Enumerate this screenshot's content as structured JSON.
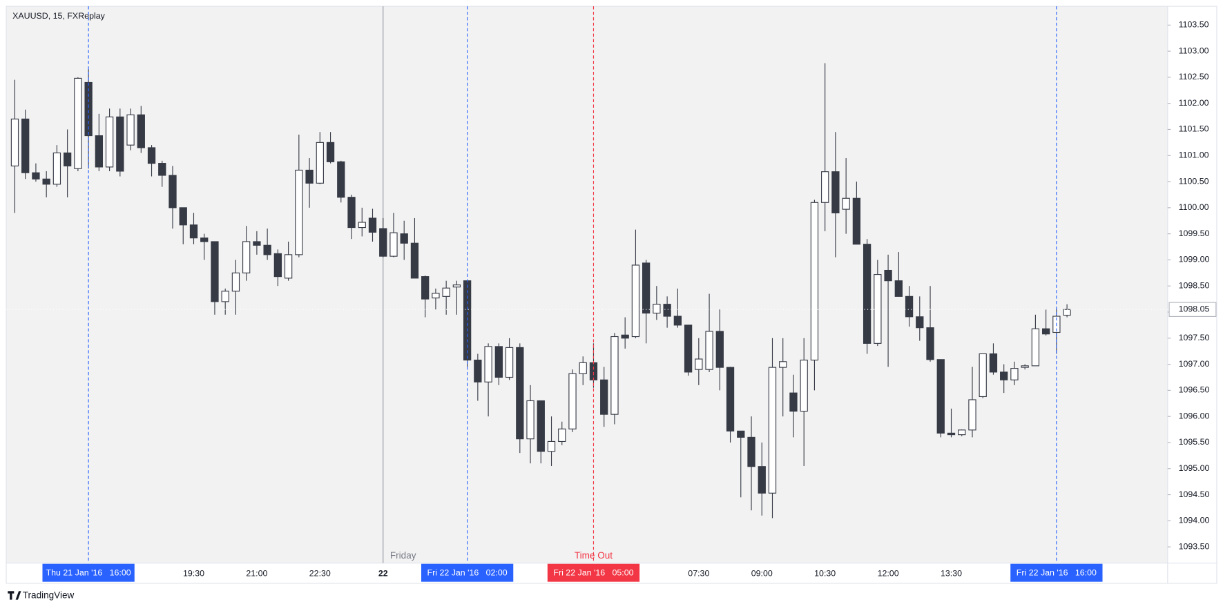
{
  "chart_data": {
    "type": "candlestick",
    "title": "XAUUSD, 15, FXReplay",
    "brand": "TradingView",
    "up_color": "#ffffff",
    "down_color": "#363a45",
    "border_color": "#363a45",
    "categories": [
      null,
      null,
      null,
      null,
      null,
      null,
      null,
      null,
      null,
      null,
      null,
      null,
      null,
      null,
      null,
      null,
      null,
      "19:30",
      null,
      null,
      null,
      null,
      null,
      "21:00",
      null,
      null,
      null,
      null,
      null,
      "22:30",
      null,
      null,
      null,
      null,
      null,
      "22",
      null,
      null,
      null,
      null,
      null,
      null,
      null,
      null,
      null,
      null,
      null,
      null,
      null,
      null,
      null,
      null,
      null,
      null,
      null,
      null,
      null,
      null,
      null,
      null,
      null,
      null,
      null,
      null,
      null,
      "07:30",
      null,
      null,
      null,
      null,
      null,
      "09:00",
      null,
      null,
      null,
      null,
      null,
      "10:30",
      null,
      null,
      null,
      null,
      null,
      "12:00",
      null,
      null,
      null,
      null,
      null,
      "13:30",
      null,
      null,
      null,
      null,
      null,
      null,
      null,
      null,
      null,
      null,
      null
    ],
    "open": [
      1100.8,
      1101.7,
      1100.67,
      1100.55,
      1100.45,
      1101.05,
      1100.75,
      1102.4,
      1101.38,
      1100.78,
      1101.74,
      1101.2,
      1101.78,
      1101.15,
      1100.85,
      1100.62,
      1100.0,
      1099.67,
      1099.42,
      1099.35,
      1098.2,
      1098.4,
      1098.75,
      1099.35,
      1099.28,
      1099.12,
      1098.65,
      1099.1,
      1100.72,
      1100.47,
      1101.25,
      1100.88,
      1100.2,
      1099.62,
      1099.8,
      1099.6,
      1099.07,
      1099.5,
      1099.32,
      1098.68,
      1098.27,
      1098.3,
      1098.48,
      1098.6,
      1097.08,
      1096.66,
      1097.34,
      1096.75,
      1097.32,
      1095.57,
      1096.3,
      1095.33,
      1095.52,
      1095.76,
      1096.82,
      1097.03,
      1096.7,
      1096.04,
      1097.56,
      1097.53,
      1098.94,
      1097.98,
      1098.15,
      1097.92,
      1097.75,
      1096.9,
      1096.9,
      1097.63,
      1096.94,
      1095.72,
      1095.6,
      1095.04,
      1094.53,
      1096.94,
      1096.45,
      1096.1,
      1097.08,
      1100.1,
      1100.69,
      1099.97,
      1100.18,
      1099.3,
      1097.4,
      1098.8,
      1098.6,
      1098.3,
      1097.91,
      1097.7,
      1097.09,
      1095.68,
      1095.65,
      1095.74,
      1096.38,
      1097.2,
      1096.85,
      1096.7,
      1096.94,
      1096.97,
      1097.68,
      1097.61,
      1097.94
    ],
    "high": [
      1102.45,
      1101.88,
      1100.85,
      1100.7,
      1101.2,
      1101.5,
      1102.5,
      1102.65,
      1101.8,
      1101.9,
      1101.9,
      1101.9,
      1101.95,
      1101.2,
      1100.9,
      1100.8,
      1100.0,
      1099.9,
      1099.5,
      1099.35,
      1098.45,
      1099.0,
      1099.65,
      1099.55,
      1099.6,
      1099.2,
      1099.35,
      1101.4,
      1100.95,
      1101.45,
      1101.45,
      1100.9,
      1100.25,
      1100.0,
      1099.98,
      1099.8,
      1099.9,
      1099.75,
      1099.8,
      1098.7,
      1098.45,
      1098.6,
      1098.6,
      1098.6,
      1097.2,
      1097.4,
      1097.4,
      1097.5,
      1097.4,
      1096.6,
      1096.3,
      1096.0,
      1095.9,
      1096.9,
      1097.15,
      1097.4,
      1096.95,
      1097.6,
      1097.9,
      1099.58,
      1099.0,
      1098.5,
      1098.3,
      1098.45,
      1097.75,
      1097.5,
      1098.35,
      1098.05,
      1096.95,
      1095.7,
      1096.0,
      1095.5,
      1097.5,
      1097.5,
      1096.8,
      1097.5,
      1100.15,
      1102.77,
      1101.45,
      1100.95,
      1100.5,
      1099.4,
      1099.0,
      1099.1,
      1099.15,
      1098.5,
      1098.3,
      1098.5,
      1097.09,
      1096.15,
      1095.75,
      1096.95,
      1097.2,
      1097.4,
      1097.0,
      1097.05,
      1097.0,
      1097.95,
      1098.05,
      1098.07,
      1098.15
    ],
    "low": [
      1099.9,
      1100.55,
      1100.5,
      1100.2,
      1100.4,
      1100.2,
      1100.7,
      1100.75,
      1100.7,
      1100.7,
      1100.6,
      1101.1,
      1101.05,
      1100.6,
      1100.4,
      1099.6,
      1099.3,
      1099.3,
      1099.0,
      1097.95,
      1097.95,
      1097.95,
      1098.6,
      1099.1,
      1099.0,
      1098.5,
      1098.6,
      1099.05,
      1100.0,
      1100.45,
      1100.85,
      1100.1,
      1099.4,
      1099.45,
      1099.35,
      1099.05,
      1099.05,
      1099.0,
      1098.65,
      1097.9,
      1098.05,
      1097.95,
      1097.95,
      1096.95,
      1096.3,
      1096.0,
      1096.6,
      1096.7,
      1095.3,
      1095.1,
      1095.1,
      1095.05,
      1095.45,
      1095.7,
      1096.6,
      1096.55,
      1095.8,
      1095.85,
      1097.3,
      1097.5,
      1097.4,
      1097.85,
      1097.7,
      1097.7,
      1096.78,
      1096.6,
      1096.85,
      1096.5,
      1095.5,
      1094.45,
      1094.2,
      1094.1,
      1094.05,
      1096.0,
      1095.6,
      1095.05,
      1096.5,
      1099.55,
      1099.05,
      1099.5,
      1099.3,
      1097.2,
      1097.35,
      1096.95,
      1098.3,
      1097.72,
      1097.45,
      1097.05,
      1095.6,
      1095.6,
      1095.62,
      1095.6,
      1096.35,
      1096.8,
      1096.45,
      1096.6,
      1096.9,
      1096.97,
      1097.55,
      1097.2,
      1097.9
    ],
    "close": [
      1101.7,
      1100.67,
      1100.55,
      1100.45,
      1101.05,
      1100.8,
      1102.48,
      1101.38,
      1100.78,
      1101.74,
      1100.7,
      1101.78,
      1101.15,
      1100.85,
      1100.62,
      1100.0,
      1099.67,
      1099.42,
      1099.35,
      1098.2,
      1098.4,
      1098.75,
      1099.35,
      1099.28,
      1099.1,
      1098.68,
      1099.1,
      1100.72,
      1100.47,
      1101.25,
      1100.88,
      1100.2,
      1099.62,
      1099.72,
      1099.53,
      1099.07,
      1099.52,
      1099.32,
      1098.65,
      1098.25,
      1098.36,
      1098.46,
      1098.52,
      1097.08,
      1096.66,
      1097.34,
      1096.75,
      1097.32,
      1095.57,
      1096.3,
      1095.33,
      1095.52,
      1095.76,
      1096.82,
      1097.03,
      1096.7,
      1096.04,
      1097.53,
      1097.5,
      1098.9,
      1097.98,
      1098.15,
      1097.92,
      1097.75,
      1096.85,
      1097.1,
      1097.63,
      1096.94,
      1095.72,
      1095.6,
      1095.04,
      1094.53,
      1096.94,
      1097.05,
      1096.1,
      1097.08,
      1100.1,
      1100.69,
      1099.9,
      1100.18,
      1099.3,
      1097.4,
      1098.72,
      1098.6,
      1098.3,
      1097.91,
      1097.7,
      1097.09,
      1095.68,
      1095.65,
      1095.74,
      1096.32,
      1097.2,
      1096.85,
      1096.7,
      1096.92,
      1096.97,
      1097.68,
      1097.58,
      1097.92,
      1098.05
    ],
    "last_price_label": "1098.05",
    "ylim": [
      1093.19,
      1103.86
    ],
    "yticks": [
      {
        "value": 1093.5,
        "label": "1093.50"
      },
      {
        "value": 1094,
        "label": "1094.00"
      },
      {
        "value": 1094.5,
        "label": "1094.50"
      },
      {
        "value": 1095,
        "label": "1095.00"
      },
      {
        "value": 1095.5,
        "label": "1095.50"
      },
      {
        "value": 1096,
        "label": "1096.00"
      },
      {
        "value": 1096.5,
        "label": "1096.50"
      },
      {
        "value": 1097,
        "label": "1097.00"
      },
      {
        "value": 1097.5,
        "label": "1097.50"
      },
      {
        "value": 1098,
        "label": "1098.00"
      },
      {
        "value": 1098.5,
        "label": "1098.50"
      },
      {
        "value": 1099,
        "label": "1099.00"
      },
      {
        "value": 1099.5,
        "label": "1099.50"
      },
      {
        "value": 1100,
        "label": "1100.00"
      },
      {
        "value": 1100.5,
        "label": "1100.50"
      },
      {
        "value": 1101,
        "label": "1101.00"
      },
      {
        "value": 1101.5,
        "label": "1101.50"
      },
      {
        "value": 1102,
        "label": "1102.00"
      },
      {
        "value": 1102.5,
        "label": "1102.50"
      },
      {
        "value": 1103,
        "label": "1103.00"
      },
      {
        "value": 1103.5,
        "label": "1103.50"
      }
    ],
    "day_separator": {
      "index": 35,
      "label": "Friday"
    },
    "markers": [
      {
        "index": 7,
        "label": "Thu 21 Jan '16   16:00",
        "color": "#2962ff"
      },
      {
        "index": 43,
        "label": "Fri 22 Jan '16   02:00",
        "color": "#2962ff"
      },
      {
        "index": 55,
        "label": "Fri 22 Jan '16   05:00",
        "color": "#f23645",
        "note": "Time Out"
      },
      {
        "index": 99,
        "label": "Fri 22 Jan '16   16:00",
        "color": "#2962ff"
      }
    ]
  }
}
